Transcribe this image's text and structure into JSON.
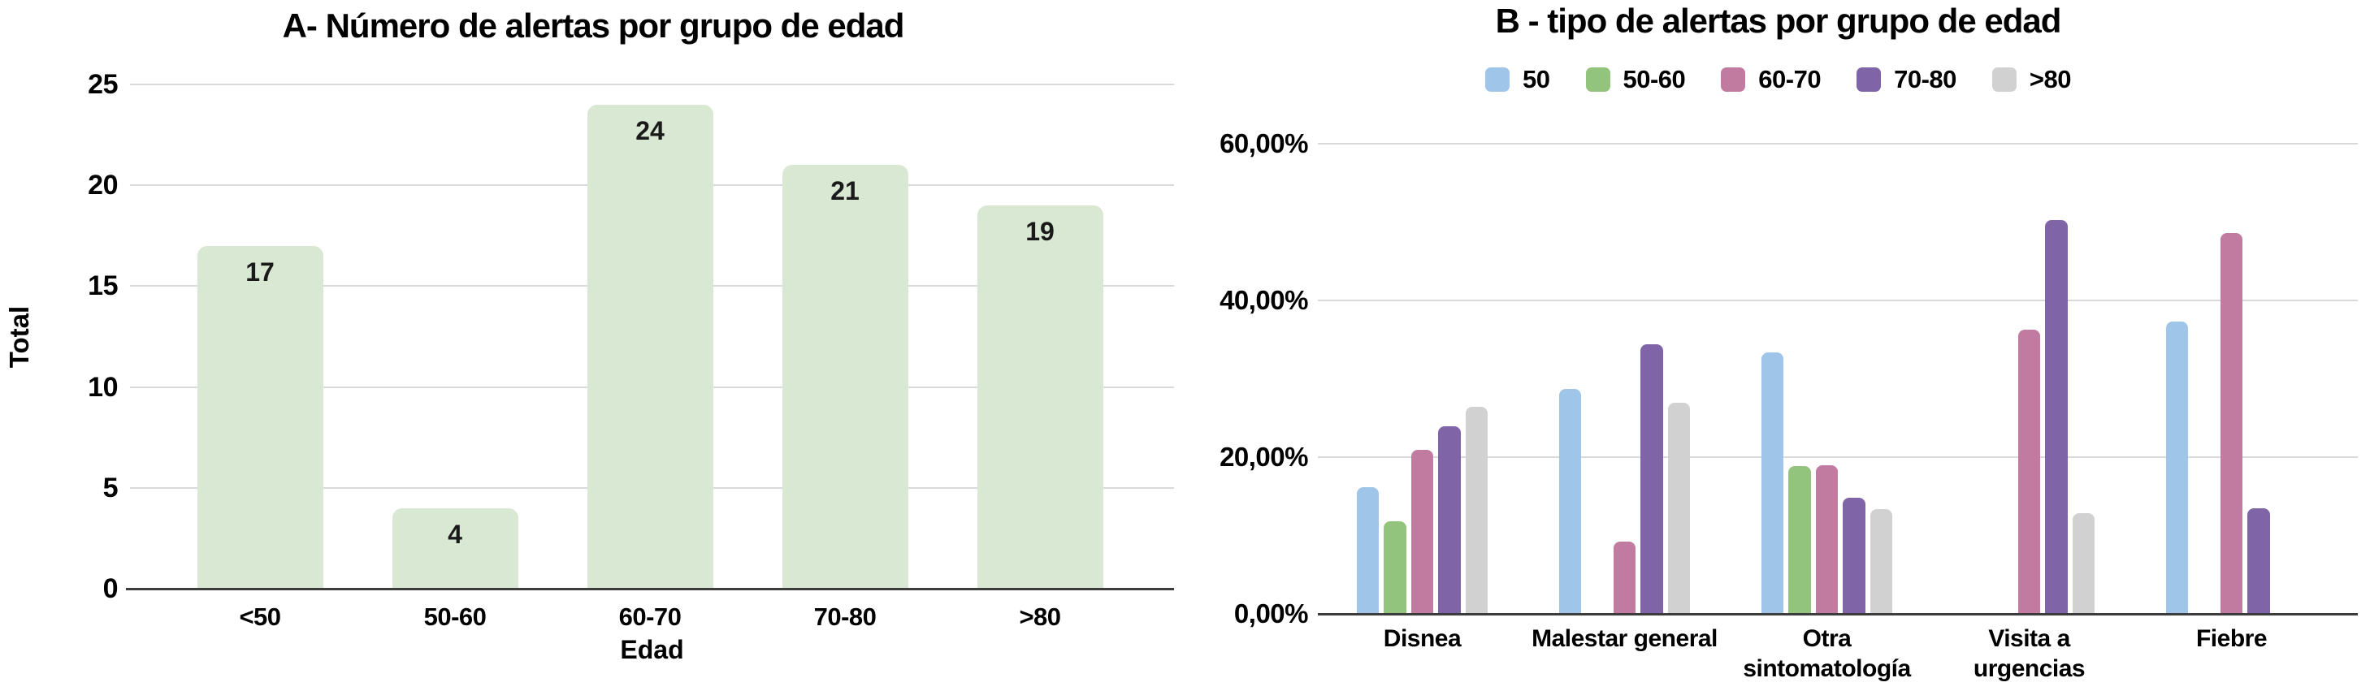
{
  "page": {
    "background": "#ffffff"
  },
  "colors": {
    "grid": "#d9d9d9",
    "axis": "#3c3c3c",
    "text": "#000000",
    "chart_a_bar": "#d9e8d2"
  },
  "chart_data": [
    {
      "id": "A",
      "type": "bar",
      "title": "A- Número de alertas por grupo de edad",
      "xlabel": "Edad",
      "ylabel": "Total",
      "categories": [
        "<50",
        "50-60",
        "60-70",
        "70-80",
        ">80"
      ],
      "values": [
        17,
        4,
        24,
        21,
        19
      ],
      "ylim": [
        0,
        25
      ],
      "yticks": [
        0,
        5,
        10,
        15,
        20,
        25
      ],
      "bar_color": "#d9e8d2",
      "grid": true,
      "data_labels": true,
      "legend_position": "none"
    },
    {
      "id": "B",
      "type": "grouped-bar",
      "title": "B - tipo de alertas por grupo de edad",
      "categories": [
        "Disnea",
        "Malestar general",
        "Otra\nsintomatología",
        "Visita a\nurgencias",
        "Fiebre"
      ],
      "series": [
        {
          "name": "50",
          "color": "#9fc5e8",
          "values": [
            16.2,
            28.7,
            33.4,
            0,
            37.3
          ]
        },
        {
          "name": "50-60",
          "color": "#93c47d",
          "values": [
            11.8,
            0,
            18.9,
            0,
            0
          ]
        },
        {
          "name": "60-70",
          "color": "#c27ba0",
          "values": [
            20.9,
            9.2,
            19.0,
            36.3,
            48.6
          ]
        },
        {
          "name": "70-80",
          "color": "#8064a8",
          "values": [
            23.9,
            34.4,
            14.8,
            50.3,
            13.5
          ]
        },
        {
          "name": ">80",
          "color": "#d1d1d1",
          "values": [
            26.4,
            26.9,
            13.4,
            12.9,
            0
          ]
        }
      ],
      "ylim": [
        0,
        60
      ],
      "yticks": [
        {
          "value": 0,
          "label": "0,00%"
        },
        {
          "value": 20,
          "label": "20,00%"
        },
        {
          "value": 40,
          "label": "40,00%"
        },
        {
          "value": 60,
          "label": "60,00%"
        }
      ],
      "grid": true,
      "data_labels": false,
      "legend_position": "top"
    }
  ]
}
